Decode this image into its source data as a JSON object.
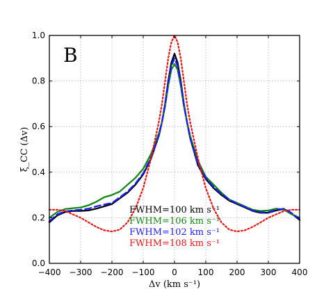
{
  "chart_data": {
    "type": "line",
    "panel_label": "B",
    "xlabel": "Δv (km s⁻¹)",
    "ylabel": "ξ_CC (Δv)",
    "xlim": [
      -400,
      400
    ],
    "ylim": [
      0.0,
      1.0
    ],
    "x_ticks": [
      -400,
      -300,
      -200,
      -100,
      0,
      100,
      200,
      300,
      400
    ],
    "x_tick_labels": [
      "−400",
      "−300",
      "−200",
      "−100",
      "0",
      "100",
      "200",
      "300",
      "400"
    ],
    "y_ticks": [
      0.0,
      0.2,
      0.4,
      0.6,
      0.8,
      1.0
    ],
    "y_tick_labels": [
      "0.0",
      "0.2",
      "0.4",
      "0.6",
      "0.8",
      "1.0"
    ],
    "grid": true,
    "legend_position": "lower-center",
    "series": [
      {
        "name": "FWHM=100 km s⁻¹",
        "color": "#000000",
        "style": "solid",
        "x": [
          -400,
          -375,
          -350,
          -325,
          -300,
          -275,
          -250,
          -225,
          -200,
          -175,
          -150,
          -125,
          -100,
          -75,
          -50,
          -40,
          -30,
          -20,
          -10,
          0,
          10,
          20,
          30,
          40,
          50,
          75,
          100,
          125,
          150,
          175,
          200,
          225,
          250,
          275,
          300,
          325,
          350,
          375,
          400
        ],
        "y": [
          0.18,
          0.21,
          0.225,
          0.23,
          0.23,
          0.232,
          0.24,
          0.25,
          0.26,
          0.285,
          0.31,
          0.345,
          0.39,
          0.46,
          0.56,
          0.62,
          0.7,
          0.8,
          0.88,
          0.92,
          0.88,
          0.8,
          0.7,
          0.62,
          0.55,
          0.43,
          0.37,
          0.33,
          0.3,
          0.275,
          0.26,
          0.245,
          0.23,
          0.222,
          0.222,
          0.232,
          0.238,
          0.218,
          0.19
        ]
      },
      {
        "name": "FWHM=106 km s⁻¹",
        "color": "#118811",
        "style": "solid",
        "x": [
          -400,
          -375,
          -350,
          -325,
          -300,
          -275,
          -250,
          -225,
          -200,
          -175,
          -150,
          -125,
          -100,
          -75,
          -50,
          -40,
          -30,
          -20,
          -10,
          0,
          10,
          20,
          30,
          40,
          50,
          75,
          100,
          125,
          150,
          175,
          200,
          225,
          250,
          275,
          300,
          325,
          350,
          375,
          400
        ],
        "y": [
          0.2,
          0.225,
          0.238,
          0.242,
          0.245,
          0.255,
          0.27,
          0.29,
          0.3,
          0.315,
          0.345,
          0.375,
          0.415,
          0.48,
          0.57,
          0.62,
          0.69,
          0.78,
          0.85,
          0.875,
          0.85,
          0.78,
          0.69,
          0.62,
          0.56,
          0.45,
          0.38,
          0.345,
          0.31,
          0.28,
          0.265,
          0.25,
          0.235,
          0.23,
          0.232,
          0.24,
          0.235,
          0.215,
          0.2
        ]
      },
      {
        "name": "FWHM=102 km s⁻¹",
        "color": "#1a1aff",
        "style": "dashed",
        "x": [
          -400,
          -375,
          -350,
          -325,
          -300,
          -275,
          -250,
          -225,
          -200,
          -175,
          -150,
          -125,
          -100,
          -75,
          -50,
          -40,
          -30,
          -20,
          -10,
          0,
          10,
          20,
          30,
          40,
          50,
          75,
          100,
          125,
          150,
          175,
          200,
          225,
          250,
          275,
          300,
          325,
          350,
          375,
          400
        ],
        "y": [
          0.185,
          0.215,
          0.228,
          0.232,
          0.235,
          0.24,
          0.25,
          0.258,
          0.265,
          0.29,
          0.315,
          0.35,
          0.395,
          0.465,
          0.56,
          0.62,
          0.695,
          0.79,
          0.865,
          0.9,
          0.865,
          0.79,
          0.695,
          0.62,
          0.55,
          0.435,
          0.375,
          0.335,
          0.305,
          0.28,
          0.262,
          0.248,
          0.232,
          0.224,
          0.224,
          0.235,
          0.24,
          0.22,
          0.192
        ]
      },
      {
        "name": "FWHM=108 km s⁻¹",
        "color": "#ee1111",
        "style": "dotted",
        "x": [
          -400,
          -375,
          -350,
          -325,
          -300,
          -275,
          -250,
          -225,
          -200,
          -175,
          -150,
          -125,
          -100,
          -75,
          -50,
          -40,
          -30,
          -20,
          -10,
          0,
          10,
          20,
          30,
          40,
          50,
          75,
          100,
          125,
          150,
          175,
          200,
          225,
          250,
          275,
          300,
          325,
          350,
          375,
          400
        ],
        "y": [
          0.235,
          0.235,
          0.23,
          0.215,
          0.2,
          0.18,
          0.16,
          0.145,
          0.14,
          0.148,
          0.18,
          0.24,
          0.33,
          0.46,
          0.62,
          0.7,
          0.8,
          0.9,
          0.97,
          1.0,
          0.97,
          0.9,
          0.8,
          0.7,
          0.62,
          0.46,
          0.33,
          0.24,
          0.18,
          0.148,
          0.14,
          0.145,
          0.16,
          0.18,
          0.2,
          0.215,
          0.23,
          0.235,
          0.235
        ]
      }
    ]
  }
}
